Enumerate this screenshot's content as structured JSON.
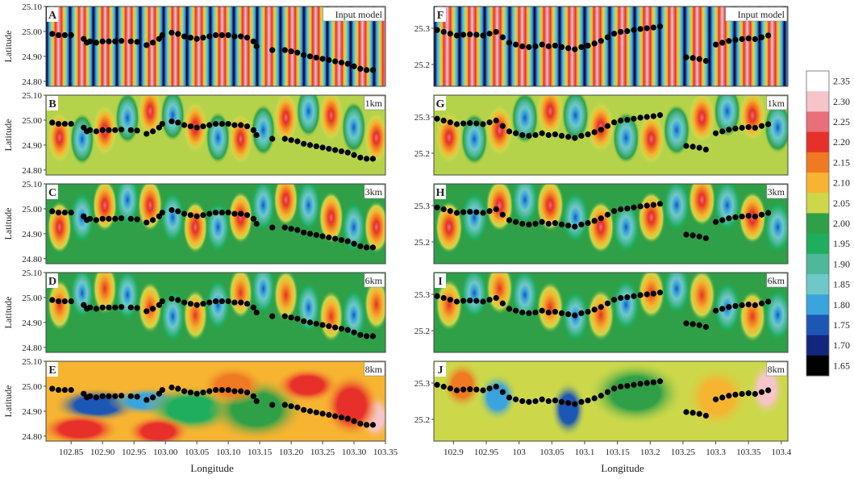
{
  "chart_data": {
    "type": "heatmap",
    "colorbar": {
      "ticks": [
        "2.35",
        "2.30",
        "2.25",
        "2.20",
        "2.15",
        "2.10",
        "2.05",
        "2.00",
        "1.95",
        "1.90",
        "1.85",
        "1.80",
        "1.75",
        "1.70",
        "1.65"
      ],
      "colors": [
        "#ffffff",
        "#f5c5c9",
        "#e8707a",
        "#e8302a",
        "#ef7a22",
        "#f6b431",
        "#ccd84a",
        "#2f9f48",
        "#1fae5e",
        "#4db89a",
        "#6fc8c8",
        "#39a4dd",
        "#1d57b5",
        "#13267e",
        "#000000"
      ]
    },
    "left": {
      "xlabel": "Longitude",
      "ylabel": "Latitude",
      "xticks": [
        "102.85",
        "102.90",
        "102.95",
        "103.00",
        "103.05",
        "103.10",
        "103.15",
        "103.20",
        "103.25",
        "103.30",
        "103.35"
      ],
      "yticks": [
        "25.10",
        "25.00",
        "24.90",
        "24.80"
      ],
      "xlim": [
        102.81,
        103.35
      ],
      "ylim": [
        24.78,
        25.1
      ],
      "panels": [
        {
          "letter": "A",
          "label": "Input model"
        },
        {
          "letter": "B",
          "label": "1km"
        },
        {
          "letter": "C",
          "label": "3km"
        },
        {
          "letter": "D",
          "label": "6km"
        },
        {
          "letter": "E",
          "label": "8km"
        }
      ],
      "stations": [
        [
          102.82,
          24.99
        ],
        [
          102.83,
          24.985
        ],
        [
          102.84,
          24.985
        ],
        [
          102.85,
          24.985
        ],
        [
          102.87,
          24.97
        ],
        [
          102.875,
          24.955
        ],
        [
          102.88,
          24.96
        ],
        [
          102.89,
          24.955
        ],
        [
          102.9,
          24.96
        ],
        [
          102.91,
          24.96
        ],
        [
          102.92,
          24.96
        ],
        [
          102.93,
          24.962
        ],
        [
          102.945,
          24.96
        ],
        [
          102.955,
          24.958
        ],
        [
          102.97,
          24.945
        ],
        [
          102.98,
          24.955
        ],
        [
          102.99,
          24.97
        ],
        [
          102.995,
          24.985
        ],
        [
          103.01,
          24.995
        ],
        [
          103.02,
          24.99
        ],
        [
          103.03,
          24.98
        ],
        [
          103.04,
          24.975
        ],
        [
          103.05,
          24.97
        ],
        [
          103.06,
          24.975
        ],
        [
          103.07,
          24.98
        ],
        [
          103.08,
          24.985
        ],
        [
          103.09,
          24.985
        ],
        [
          103.1,
          24.985
        ],
        [
          103.11,
          24.98
        ],
        [
          103.12,
          24.98
        ],
        [
          103.13,
          24.975
        ],
        [
          103.14,
          24.96
        ],
        [
          103.145,
          24.94
        ],
        [
          103.17,
          24.925
        ],
        [
          103.19,
          24.925
        ],
        [
          103.2,
          24.92
        ],
        [
          103.21,
          24.915
        ],
        [
          103.22,
          24.905
        ],
        [
          103.23,
          24.9
        ],
        [
          103.24,
          24.895
        ],
        [
          103.25,
          24.89
        ],
        [
          103.26,
          24.885
        ],
        [
          103.27,
          24.88
        ],
        [
          103.28,
          24.875
        ],
        [
          103.29,
          24.87
        ],
        [
          103.3,
          24.86
        ],
        [
          103.31,
          24.85
        ],
        [
          103.32,
          24.845
        ],
        [
          103.33,
          24.845
        ]
      ]
    },
    "right": {
      "xlabel": "Longitude",
      "xticks": [
        "102.9",
        "102.95",
        "103",
        "103.05",
        "103.1",
        "103.15",
        "103.2",
        "103.25",
        "103.3",
        "103.35",
        "103.4"
      ],
      "yticks": [
        "25.3",
        "25.2"
      ],
      "xlim": [
        102.87,
        103.41
      ],
      "ylim": [
        25.14,
        25.36
      ],
      "panels": [
        {
          "letter": "F",
          "label": "Input model"
        },
        {
          "letter": "G",
          "label": "1km"
        },
        {
          "letter": "H",
          "label": "3km"
        },
        {
          "letter": "I",
          "label": "6km"
        },
        {
          "letter": "J",
          "label": "8km"
        }
      ],
      "stations": [
        [
          102.875,
          25.295
        ],
        [
          102.885,
          25.29
        ],
        [
          102.895,
          25.285
        ],
        [
          102.905,
          25.28
        ],
        [
          102.915,
          25.282
        ],
        [
          102.925,
          25.283
        ],
        [
          102.935,
          25.282
        ],
        [
          102.945,
          25.28
        ],
        [
          102.955,
          25.285
        ],
        [
          102.965,
          25.29
        ],
        [
          102.975,
          25.275
        ],
        [
          102.985,
          25.26
        ],
        [
          102.995,
          25.255
        ],
        [
          103.005,
          25.25
        ],
        [
          103.015,
          25.248
        ],
        [
          103.025,
          25.25
        ],
        [
          103.035,
          25.255
        ],
        [
          103.045,
          25.25
        ],
        [
          103.055,
          25.252
        ],
        [
          103.065,
          25.248
        ],
        [
          103.075,
          25.245
        ],
        [
          103.085,
          25.242
        ],
        [
          103.095,
          25.248
        ],
        [
          103.105,
          25.252
        ],
        [
          103.115,
          25.258
        ],
        [
          103.125,
          25.265
        ],
        [
          103.135,
          25.275
        ],
        [
          103.145,
          25.285
        ],
        [
          103.155,
          25.29
        ],
        [
          103.165,
          25.292
        ],
        [
          103.175,
          25.295
        ],
        [
          103.185,
          25.298
        ],
        [
          103.195,
          25.3
        ],
        [
          103.205,
          25.302
        ],
        [
          103.215,
          25.305
        ],
        [
          103.255,
          25.22
        ],
        [
          103.265,
          25.218
        ],
        [
          103.275,
          25.215
        ],
        [
          103.285,
          25.21
        ],
        [
          103.3,
          25.255
        ],
        [
          103.31,
          25.26
        ],
        [
          103.32,
          25.265
        ],
        [
          103.33,
          25.268
        ],
        [
          103.34,
          25.27
        ],
        [
          103.35,
          25.272
        ],
        [
          103.36,
          25.27
        ],
        [
          103.37,
          25.275
        ],
        [
          103.38,
          25.28
        ]
      ]
    }
  }
}
